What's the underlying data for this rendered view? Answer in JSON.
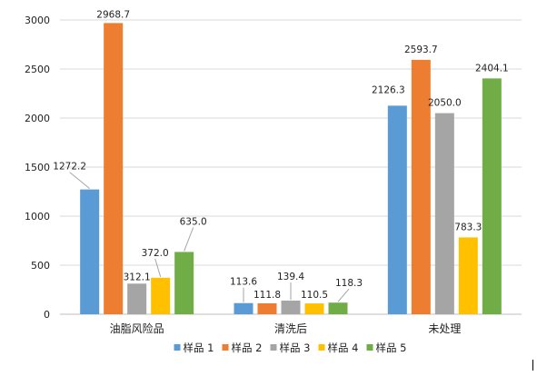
{
  "chart_data": {
    "type": "bar",
    "title": "",
    "xlabel": "",
    "ylabel": "",
    "ylim": [
      0,
      3000
    ],
    "y_ticks": [
      0,
      500,
      1000,
      1500,
      2000,
      2500,
      3000
    ],
    "grid": true,
    "legend_position": "bottom",
    "categories": [
      "油脂风险品",
      "清洗后",
      "未处理"
    ],
    "series": [
      {
        "name": "样品 1",
        "color": "#5B9BD5",
        "values": [
          1272.2,
          113.6,
          2126.3
        ],
        "labels": [
          "1272.2",
          "113.6",
          "2126.3"
        ]
      },
      {
        "name": "样品 2",
        "color": "#ED7D31",
        "values": [
          2968.7,
          111.8,
          2593.7
        ],
        "labels": [
          "2968.7",
          "111.8",
          "2593.7"
        ]
      },
      {
        "name": "样品 3",
        "color": "#A5A5A5",
        "values": [
          312.1,
          139.4,
          2050.0
        ],
        "labels": [
          "312.1",
          "139.4",
          "2050.0"
        ]
      },
      {
        "name": "样品 4",
        "color": "#FFC000",
        "values": [
          372.0,
          110.5,
          783.3
        ],
        "labels": [
          "372.0",
          "110.5",
          "783.3"
        ]
      },
      {
        "name": "样品 5",
        "color": "#70AD47",
        "values": [
          635.0,
          118.3,
          2404.1
        ],
        "labels": [
          "635.0",
          "118.3",
          "2404.1"
        ]
      }
    ]
  }
}
